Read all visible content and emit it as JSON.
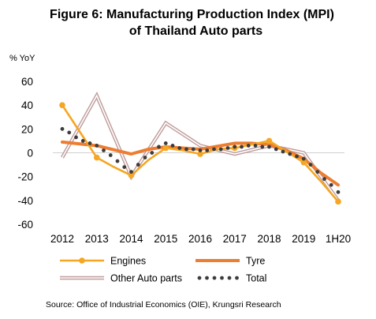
{
  "chart_data": {
    "type": "line",
    "title": "Figure 6: Manufacturing Production Index (MPI)",
    "title_line2": "of Thailand Auto parts",
    "ylabel": "% YoY",
    "ylim": [
      -60,
      60
    ],
    "yticks": [
      60,
      40,
      20,
      0,
      -20,
      -40,
      -60
    ],
    "grid": false,
    "legend_position": "bottom",
    "year_labels": [
      "2012",
      "2013",
      "2014",
      "2015",
      "2016",
      "2017",
      "2018",
      "2019",
      "1H20"
    ],
    "year_label_positions": [
      0,
      1,
      2,
      3,
      4,
      5,
      6,
      7,
      8
    ],
    "x": [
      0,
      1,
      2,
      3,
      4,
      5,
      6,
      7,
      8
    ],
    "series": [
      {
        "name": "Engines",
        "color": "#f5a623",
        "style": "line-marker",
        "x": [
          0,
          0.5,
          1,
          1.5,
          2,
          2.5,
          3,
          3.5,
          4,
          4.5,
          5,
          5.5,
          6,
          6.5,
          7,
          7.5,
          8
        ],
        "values": [
          40,
          18,
          -4,
          -12,
          -19,
          -6,
          4,
          2,
          -1,
          3,
          4,
          7,
          10,
          1,
          -8,
          -24,
          -41
        ],
        "markers_at": [
          0,
          1,
          2,
          3,
          4,
          5,
          6,
          7,
          8
        ]
      },
      {
        "name": "Tyre",
        "color": "#ed7d31",
        "style": "thick-line",
        "x": [
          0,
          1,
          2,
          2.5,
          3,
          4,
          5,
          5.5,
          6,
          6.5,
          7,
          7.5,
          8
        ],
        "values": [
          9,
          6,
          -1,
          3,
          5,
          3,
          8,
          8,
          7,
          2,
          -5,
          -17,
          -27
        ]
      },
      {
        "name": "Other Auto parts",
        "color": "#c09d9d",
        "style": "double-line",
        "x": [
          0,
          1,
          2,
          3,
          4,
          5,
          6,
          7,
          8
        ],
        "values": [
          -4,
          48,
          -20,
          25,
          6,
          -1,
          6,
          0,
          -40
        ]
      },
      {
        "name": "Total",
        "color": "#3c3c3c",
        "style": "dotted",
        "x": [
          0,
          0.2,
          0.4,
          0.6,
          0.8,
          1,
          1.2,
          1.4,
          1.6,
          1.8,
          2,
          2.2,
          2.4,
          2.6,
          2.8,
          3,
          3.2,
          3.4,
          3.6,
          3.8,
          4,
          4.2,
          4.4,
          4.6,
          4.8,
          5,
          5.2,
          5.4,
          5.6,
          5.8,
          6,
          6.2,
          6.4,
          6.6,
          6.8,
          7,
          7.2,
          7.4,
          7.6,
          7.8,
          8
        ],
        "values": [
          20,
          17,
          13,
          10,
          8,
          6,
          2,
          -2,
          -7,
          -12,
          -16,
          -10,
          -4,
          0,
          5,
          8,
          6,
          4,
          3,
          3,
          2,
          2,
          3,
          3,
          4,
          5,
          5,
          6,
          6,
          5,
          5,
          3,
          1,
          -1,
          -3,
          -5,
          -10,
          -16,
          -22,
          -27,
          -33
        ]
      }
    ]
  },
  "source": "Source: Office of Industrial Economics (OIE), Krungsri Research"
}
